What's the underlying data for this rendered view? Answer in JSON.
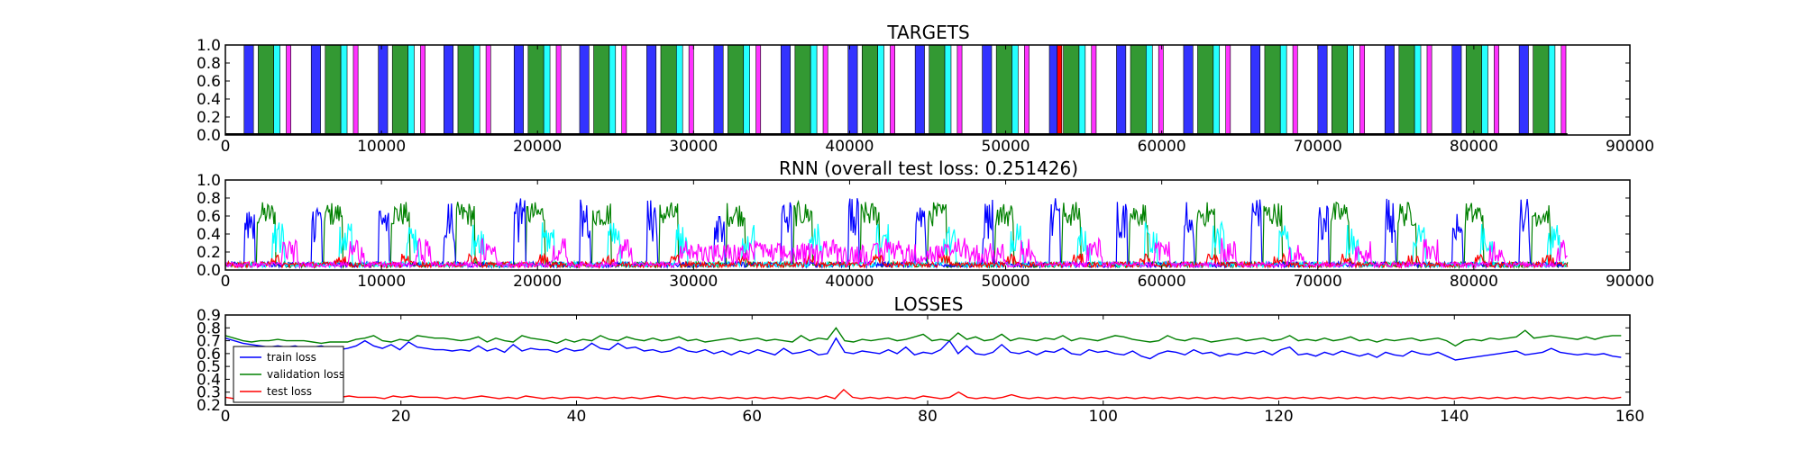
{
  "chart_data": [
    {
      "type": "bar",
      "title": "TARGETS",
      "xlim": [
        0,
        90000
      ],
      "ylim": [
        0,
        1.0
      ],
      "x_ticks": [
        "0",
        "10000",
        "20000",
        "30000",
        "40000",
        "50000",
        "60000",
        "70000",
        "80000",
        "90000"
      ],
      "y_ticks": [
        "0.0",
        "0.2",
        "0.4",
        "0.6",
        "0.8",
        "1.0"
      ],
      "colors": {
        "blue": "#0000ff",
        "green": "#008000",
        "cyan": "#00ffff",
        "magenta": "#ff00ff",
        "red": "#ff0000"
      },
      "data_end": 86000,
      "cycle_starts": [
        1200,
        5500,
        9800,
        14000,
        18500,
        22700,
        27000,
        31300,
        35600,
        39900,
        44200,
        48500,
        52800,
        57100,
        61400,
        65700,
        70000,
        74300,
        78600,
        82900
      ],
      "cycle_pattern": [
        {
          "color": "blue",
          "start": 0,
          "end": 600
        },
        {
          "color": "green",
          "start": 900,
          "end": 1900
        },
        {
          "color": "cyan",
          "start": 1900,
          "end": 2300
        },
        {
          "color": "magenta",
          "start": 2700,
          "end": 3000
        }
      ],
      "extra_segments": [
        {
          "color": "red",
          "start": 53300,
          "end": 53600
        }
      ]
    },
    {
      "type": "line",
      "title": "RNN (overall test loss: 0.251426)",
      "xlim": [
        0,
        90000
      ],
      "ylim": [
        0,
        1.0
      ],
      "x_ticks": [
        "0",
        "10000",
        "20000",
        "30000",
        "40000",
        "50000",
        "60000",
        "70000",
        "80000",
        "90000"
      ],
      "y_ticks": [
        "0.0",
        "0.2",
        "0.4",
        "0.6",
        "0.8",
        "1.0"
      ],
      "x_end": 86000,
      "series": [
        {
          "key": "green",
          "color": "#008000",
          "level": 0.62,
          "noise": 0.14
        },
        {
          "key": "blue",
          "color": "#0000ff",
          "level": 0.55,
          "noise": 0.25
        },
        {
          "key": "cyan",
          "color": "#00ffff",
          "level": 0.35,
          "noise": 0.18
        },
        {
          "key": "red",
          "color": "#ff0000",
          "level": 0.12,
          "noise": 0.06
        },
        {
          "key": "magenta",
          "color": "#ff00ff",
          "level": 0.22,
          "noise": 0.14
        }
      ]
    },
    {
      "type": "line",
      "title": "LOSSES",
      "xlim": [
        0,
        160
      ],
      "ylim": [
        0.2,
        0.9
      ],
      "x_ticks": [
        "0",
        "20",
        "40",
        "60",
        "80",
        "100",
        "120",
        "140",
        "160"
      ],
      "y_ticks": [
        "0.2",
        "0.3",
        "0.4",
        "0.5",
        "0.6",
        "0.7",
        "0.8",
        "0.9"
      ],
      "legend_position": "lower-left",
      "series": [
        {
          "name": "train loss",
          "color": "#0000ff",
          "values": [
            0.72,
            0.7,
            0.68,
            0.67,
            0.66,
            0.65,
            0.66,
            0.65,
            0.66,
            0.64,
            0.65,
            0.66,
            0.64,
            0.63,
            0.64,
            0.66,
            0.7,
            0.66,
            0.64,
            0.67,
            0.63,
            0.69,
            0.65,
            0.64,
            0.63,
            0.63,
            0.62,
            0.63,
            0.62,
            0.66,
            0.62,
            0.64,
            0.61,
            0.67,
            0.62,
            0.64,
            0.63,
            0.63,
            0.61,
            0.64,
            0.62,
            0.63,
            0.68,
            0.64,
            0.63,
            0.68,
            0.64,
            0.65,
            0.62,
            0.63,
            0.61,
            0.62,
            0.65,
            0.62,
            0.61,
            0.63,
            0.6,
            0.62,
            0.59,
            0.62,
            0.6,
            0.63,
            0.61,
            0.59,
            0.64,
            0.6,
            0.61,
            0.63,
            0.59,
            0.6,
            0.72,
            0.61,
            0.6,
            0.62,
            0.61,
            0.6,
            0.63,
            0.6,
            0.65,
            0.59,
            0.61,
            0.6,
            0.63,
            0.7,
            0.6,
            0.66,
            0.6,
            0.59,
            0.61,
            0.67,
            0.61,
            0.6,
            0.62,
            0.59,
            0.62,
            0.61,
            0.64,
            0.6,
            0.59,
            0.63,
            0.61,
            0.62,
            0.6,
            0.59,
            0.62,
            0.58,
            0.56,
            0.6,
            0.62,
            0.61,
            0.59,
            0.63,
            0.6,
            0.61,
            0.58,
            0.6,
            0.59,
            0.61,
            0.6,
            0.62,
            0.59,
            0.63,
            0.65,
            0.59,
            0.6,
            0.58,
            0.61,
            0.59,
            0.62,
            0.6,
            0.58,
            0.6,
            0.57,
            0.61,
            0.59,
            0.58,
            0.62,
            0.6,
            0.59,
            0.61,
            0.58,
            0.55,
            0.56,
            0.57,
            0.58,
            0.59,
            0.6,
            0.61,
            0.62,
            0.59,
            0.6,
            0.61,
            0.64,
            0.61,
            0.6,
            0.59,
            0.6,
            0.59,
            0.6,
            0.58,
            0.57
          ]
        },
        {
          "name": "validation loss",
          "color": "#008000",
          "values": [
            0.74,
            0.72,
            0.7,
            0.69,
            0.7,
            0.7,
            0.71,
            0.7,
            0.7,
            0.7,
            0.69,
            0.68,
            0.69,
            0.69,
            0.69,
            0.71,
            0.72,
            0.74,
            0.7,
            0.69,
            0.71,
            0.7,
            0.74,
            0.73,
            0.72,
            0.72,
            0.71,
            0.7,
            0.71,
            0.73,
            0.69,
            0.72,
            0.7,
            0.69,
            0.74,
            0.72,
            0.71,
            0.7,
            0.68,
            0.71,
            0.69,
            0.71,
            0.7,
            0.74,
            0.71,
            0.7,
            0.73,
            0.71,
            0.7,
            0.72,
            0.7,
            0.71,
            0.73,
            0.7,
            0.71,
            0.69,
            0.7,
            0.71,
            0.72,
            0.7,
            0.71,
            0.72,
            0.7,
            0.71,
            0.7,
            0.69,
            0.74,
            0.7,
            0.72,
            0.71,
            0.8,
            0.7,
            0.69,
            0.71,
            0.7,
            0.71,
            0.72,
            0.7,
            0.71,
            0.73,
            0.75,
            0.7,
            0.71,
            0.7,
            0.76,
            0.71,
            0.73,
            0.7,
            0.71,
            0.75,
            0.7,
            0.72,
            0.71,
            0.7,
            0.72,
            0.71,
            0.74,
            0.7,
            0.72,
            0.71,
            0.7,
            0.72,
            0.74,
            0.73,
            0.71,
            0.7,
            0.69,
            0.7,
            0.74,
            0.71,
            0.7,
            0.72,
            0.71,
            0.69,
            0.7,
            0.71,
            0.72,
            0.7,
            0.71,
            0.72,
            0.7,
            0.71,
            0.74,
            0.7,
            0.71,
            0.7,
            0.72,
            0.7,
            0.71,
            0.73,
            0.7,
            0.71,
            0.69,
            0.71,
            0.7,
            0.71,
            0.72,
            0.7,
            0.71,
            0.72,
            0.7,
            0.66,
            0.7,
            0.71,
            0.7,
            0.72,
            0.71,
            0.72,
            0.73,
            0.78,
            0.72,
            0.73,
            0.74,
            0.73,
            0.72,
            0.71,
            0.73,
            0.71,
            0.73,
            0.74,
            0.74
          ]
        },
        {
          "name": "test loss",
          "color": "#ff0000",
          "values": [
            0.26,
            0.25,
            0.25,
            0.24,
            0.25,
            0.24,
            0.25,
            0.24,
            0.25,
            0.24,
            0.24,
            0.23,
            0.25,
            0.26,
            0.27,
            0.26,
            0.26,
            0.26,
            0.25,
            0.27,
            0.26,
            0.27,
            0.26,
            0.26,
            0.26,
            0.25,
            0.26,
            0.25,
            0.26,
            0.27,
            0.26,
            0.25,
            0.26,
            0.25,
            0.27,
            0.26,
            0.25,
            0.26,
            0.25,
            0.26,
            0.26,
            0.25,
            0.26,
            0.25,
            0.26,
            0.25,
            0.26,
            0.25,
            0.26,
            0.27,
            0.26,
            0.25,
            0.26,
            0.25,
            0.26,
            0.25,
            0.26,
            0.25,
            0.26,
            0.25,
            0.26,
            0.25,
            0.26,
            0.25,
            0.26,
            0.25,
            0.26,
            0.25,
            0.27,
            0.25,
            0.32,
            0.26,
            0.25,
            0.26,
            0.25,
            0.26,
            0.25,
            0.26,
            0.25,
            0.27,
            0.26,
            0.25,
            0.26,
            0.3,
            0.26,
            0.25,
            0.26,
            0.25,
            0.26,
            0.28,
            0.26,
            0.25,
            0.26,
            0.25,
            0.26,
            0.25,
            0.26,
            0.25,
            0.26,
            0.25,
            0.26,
            0.25,
            0.26,
            0.25,
            0.26,
            0.25,
            0.26,
            0.25,
            0.26,
            0.25,
            0.26,
            0.25,
            0.26,
            0.25,
            0.26,
            0.25,
            0.26,
            0.25,
            0.26,
            0.25,
            0.26,
            0.25,
            0.26,
            0.25,
            0.26,
            0.25,
            0.26,
            0.25,
            0.26,
            0.25,
            0.26,
            0.25,
            0.26,
            0.25,
            0.26,
            0.25,
            0.26,
            0.25,
            0.26,
            0.25,
            0.26,
            0.25,
            0.26,
            0.25,
            0.26,
            0.25,
            0.26,
            0.25,
            0.26,
            0.25,
            0.26,
            0.25,
            0.26,
            0.25,
            0.26,
            0.25,
            0.26,
            0.25,
            0.26
          ]
        }
      ]
    }
  ]
}
